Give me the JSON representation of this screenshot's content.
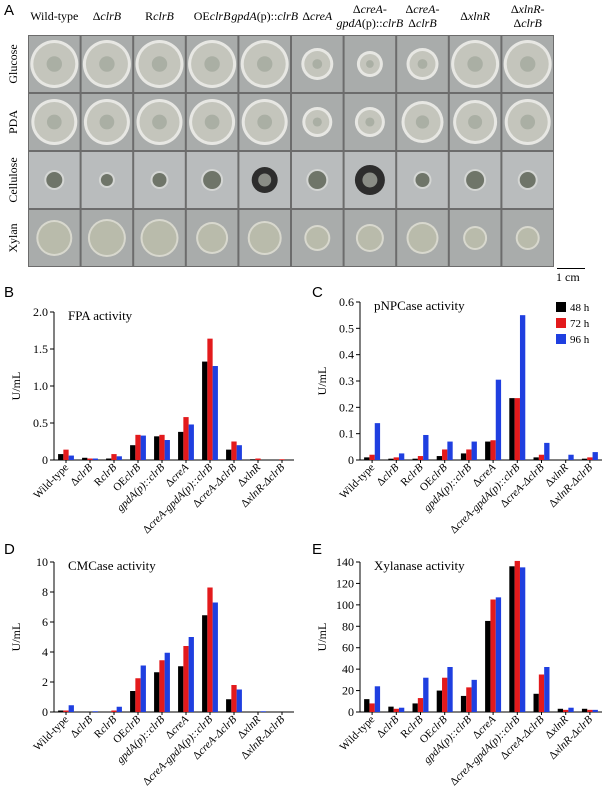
{
  "panels": {
    "A": "A",
    "B": "B",
    "C": "C",
    "D": "D",
    "E": "E"
  },
  "plates": {
    "strains": [
      {
        "pre": "Wild-type",
        "it": "",
        "post": ""
      },
      {
        "pre": "Δ",
        "it": "clrB",
        "post": ""
      },
      {
        "pre": "R",
        "it": "clrB",
        "post": ""
      },
      {
        "pre": "OE",
        "it": "clrB",
        "post": ""
      },
      {
        "pre": "",
        "it": "gpdA",
        "post": "(p)::",
        "it2": "clrB"
      },
      {
        "pre": "Δ",
        "it": "creA",
        "post": ""
      },
      {
        "pre": "Δ",
        "it": "creA",
        "post": "-",
        "line2pre": "",
        "line2it": "gpdA",
        "line2post": "(p)::",
        "line2it2": "clrB"
      },
      {
        "pre": "Δ",
        "it": "creA",
        "post": "-",
        "line2pre": "Δ",
        "line2it": "clrB",
        "line2post": ""
      },
      {
        "pre": "Δ",
        "it": "xlnR",
        "post": ""
      },
      {
        "pre": "Δ",
        "it": "xlnR",
        "post": "-",
        "line2pre": "Δ",
        "line2it": "clrB",
        "line2post": ""
      }
    ],
    "media": [
      "Glucose",
      "PDA",
      "Cellulose",
      "Xylan"
    ],
    "scale": "1 cm"
  },
  "legend": [
    {
      "label": "48 h",
      "color": "#000000"
    },
    {
      "label": "72 h",
      "color": "#e31a1c"
    },
    {
      "label": "96 h",
      "color": "#1f3fe0"
    }
  ],
  "x_labels": [
    {
      "pre": "Wild-type",
      "it": "",
      "post": ""
    },
    {
      "pre": "Δ",
      "it": "clrB",
      "post": ""
    },
    {
      "pre": "R",
      "it": "clrB",
      "post": ""
    },
    {
      "pre": "OE",
      "it": "clrB",
      "post": ""
    },
    {
      "pre": "",
      "it": "gpdA(p)::clrB",
      "post": ""
    },
    {
      "pre": "Δ",
      "it": "creA",
      "post": ""
    },
    {
      "pre": "Δ",
      "it": "creA-gpdA(p)::clrB",
      "post": ""
    },
    {
      "pre": "Δ",
      "it": "creA-Δ",
      "post": "",
      "it2": "clrB"
    },
    {
      "pre": "Δ",
      "it": "xlnR",
      "post": ""
    },
    {
      "pre": "Δ",
      "it": "xlnR-Δ",
      "post": "",
      "it2": "clrB"
    }
  ],
  "chart_data": [
    {
      "type": "bar",
      "panel": "B",
      "title": "FPA activity",
      "ylabel": "U/mL",
      "ylim": [
        0,
        2.0
      ],
      "yticks": [
        0,
        0.5,
        1.0,
        1.5,
        2.0
      ],
      "ytick_labels": [
        "0",
        "0.5",
        "1.0",
        "1.5",
        "2.0"
      ],
      "series": [
        {
          "name": "48 h",
          "values": [
            0.08,
            0.03,
            0.02,
            0.2,
            0.32,
            0.38,
            1.33,
            0.14,
            0.01,
            0.0
          ]
        },
        {
          "name": "72 h",
          "values": [
            0.14,
            0.02,
            0.08,
            0.34,
            0.34,
            0.58,
            1.64,
            0.25,
            0.02,
            0.01
          ]
        },
        {
          "name": "96 h",
          "values": [
            0.06,
            0.02,
            0.05,
            0.33,
            0.27,
            0.48,
            1.27,
            0.2,
            0.0,
            0.0
          ]
        }
      ]
    },
    {
      "type": "bar",
      "panel": "C",
      "title": "pNPCase activity",
      "ylabel": "U/mL",
      "ylim": [
        0,
        0.6
      ],
      "yticks": [
        0,
        0.1,
        0.2,
        0.3,
        0.4,
        0.5,
        0.6
      ],
      "ytick_labels": [
        "0",
        "0.1",
        "0.2",
        "0.3",
        "0.4",
        "0.5",
        "0.6"
      ],
      "series": [
        {
          "name": "48 h",
          "values": [
            0.01,
            0.005,
            0.005,
            0.015,
            0.025,
            0.07,
            0.235,
            0.01,
            0.0,
            0.005
          ]
        },
        {
          "name": "72 h",
          "values": [
            0.02,
            0.01,
            0.015,
            0.04,
            0.04,
            0.075,
            0.235,
            0.02,
            0.0,
            0.01
          ]
        },
        {
          "name": "96 h",
          "values": [
            0.14,
            0.025,
            0.095,
            0.07,
            0.07,
            0.305,
            0.55,
            0.065,
            0.02,
            0.03
          ]
        }
      ]
    },
    {
      "type": "bar",
      "panel": "D",
      "title": "CMCase activity",
      "ylabel": "U/mL",
      "ylim": [
        0,
        10
      ],
      "yticks": [
        0,
        2,
        4,
        6,
        8,
        10
      ],
      "ytick_labels": [
        "0",
        "2",
        "4",
        "6",
        "8",
        "10"
      ],
      "series": [
        {
          "name": "48 h",
          "values": [
            0.1,
            0.0,
            0.0,
            1.4,
            2.65,
            3.05,
            6.45,
            0.85,
            0.0,
            0.0
          ]
        },
        {
          "name": "72 h",
          "values": [
            0.1,
            0.0,
            0.1,
            2.25,
            3.45,
            4.4,
            8.3,
            1.8,
            0.0,
            0.0
          ]
        },
        {
          "name": "96 h",
          "values": [
            0.45,
            0.05,
            0.35,
            3.1,
            3.95,
            5.0,
            7.3,
            1.5,
            0.05,
            0.0
          ]
        }
      ]
    },
    {
      "type": "bar",
      "panel": "E",
      "title": "Xylanase activity",
      "ylabel": "U/mL",
      "ylim": [
        0,
        140
      ],
      "yticks": [
        0,
        20,
        40,
        60,
        80,
        100,
        120,
        140
      ],
      "ytick_labels": [
        "0",
        "20",
        "40",
        "60",
        "80",
        "100",
        "120",
        "140"
      ],
      "series": [
        {
          "name": "48 h",
          "values": [
            12,
            5,
            8,
            20,
            15,
            85,
            136,
            17,
            3,
            3
          ]
        },
        {
          "name": "72 h",
          "values": [
            8,
            3,
            13,
            32,
            23,
            105,
            141,
            35,
            2,
            2
          ]
        },
        {
          "name": "96 h",
          "values": [
            24,
            4,
            32,
            42,
            30,
            107,
            135,
            42,
            4,
            2
          ]
        }
      ]
    }
  ]
}
